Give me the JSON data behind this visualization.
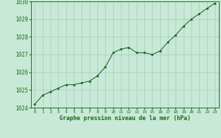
{
  "x": [
    0,
    1,
    2,
    3,
    4,
    5,
    6,
    7,
    8,
    9,
    10,
    11,
    12,
    13,
    14,
    15,
    16,
    17,
    18,
    19,
    20,
    21,
    22,
    23
  ],
  "y": [
    1024.2,
    1024.7,
    1024.9,
    1025.1,
    1025.3,
    1025.3,
    1025.4,
    1025.5,
    1025.8,
    1026.3,
    1027.1,
    1027.3,
    1027.4,
    1027.1,
    1027.1,
    1027.0,
    1027.2,
    1027.7,
    1028.1,
    1028.6,
    1029.0,
    1029.3,
    1029.6,
    1029.9
  ],
  "line_color": "#1a6b1a",
  "marker_color": "#1a6b1a",
  "bg_color": "#c8e8d8",
  "grid_color": "#a8c8b8",
  "xlabel": "Graphe pression niveau de la mer (hPa)",
  "xlabel_color": "#1a6b1a",
  "tick_color": "#1a6b1a",
  "axis_color": "#1a6b1a",
  "ylim": [
    1024.0,
    1030.0
  ],
  "yticks": [
    1024,
    1025,
    1026,
    1027,
    1028,
    1029,
    1030
  ],
  "xticks": [
    0,
    1,
    2,
    3,
    4,
    5,
    6,
    7,
    8,
    9,
    10,
    11,
    12,
    13,
    14,
    15,
    16,
    17,
    18,
    19,
    20,
    21,
    22,
    23
  ]
}
